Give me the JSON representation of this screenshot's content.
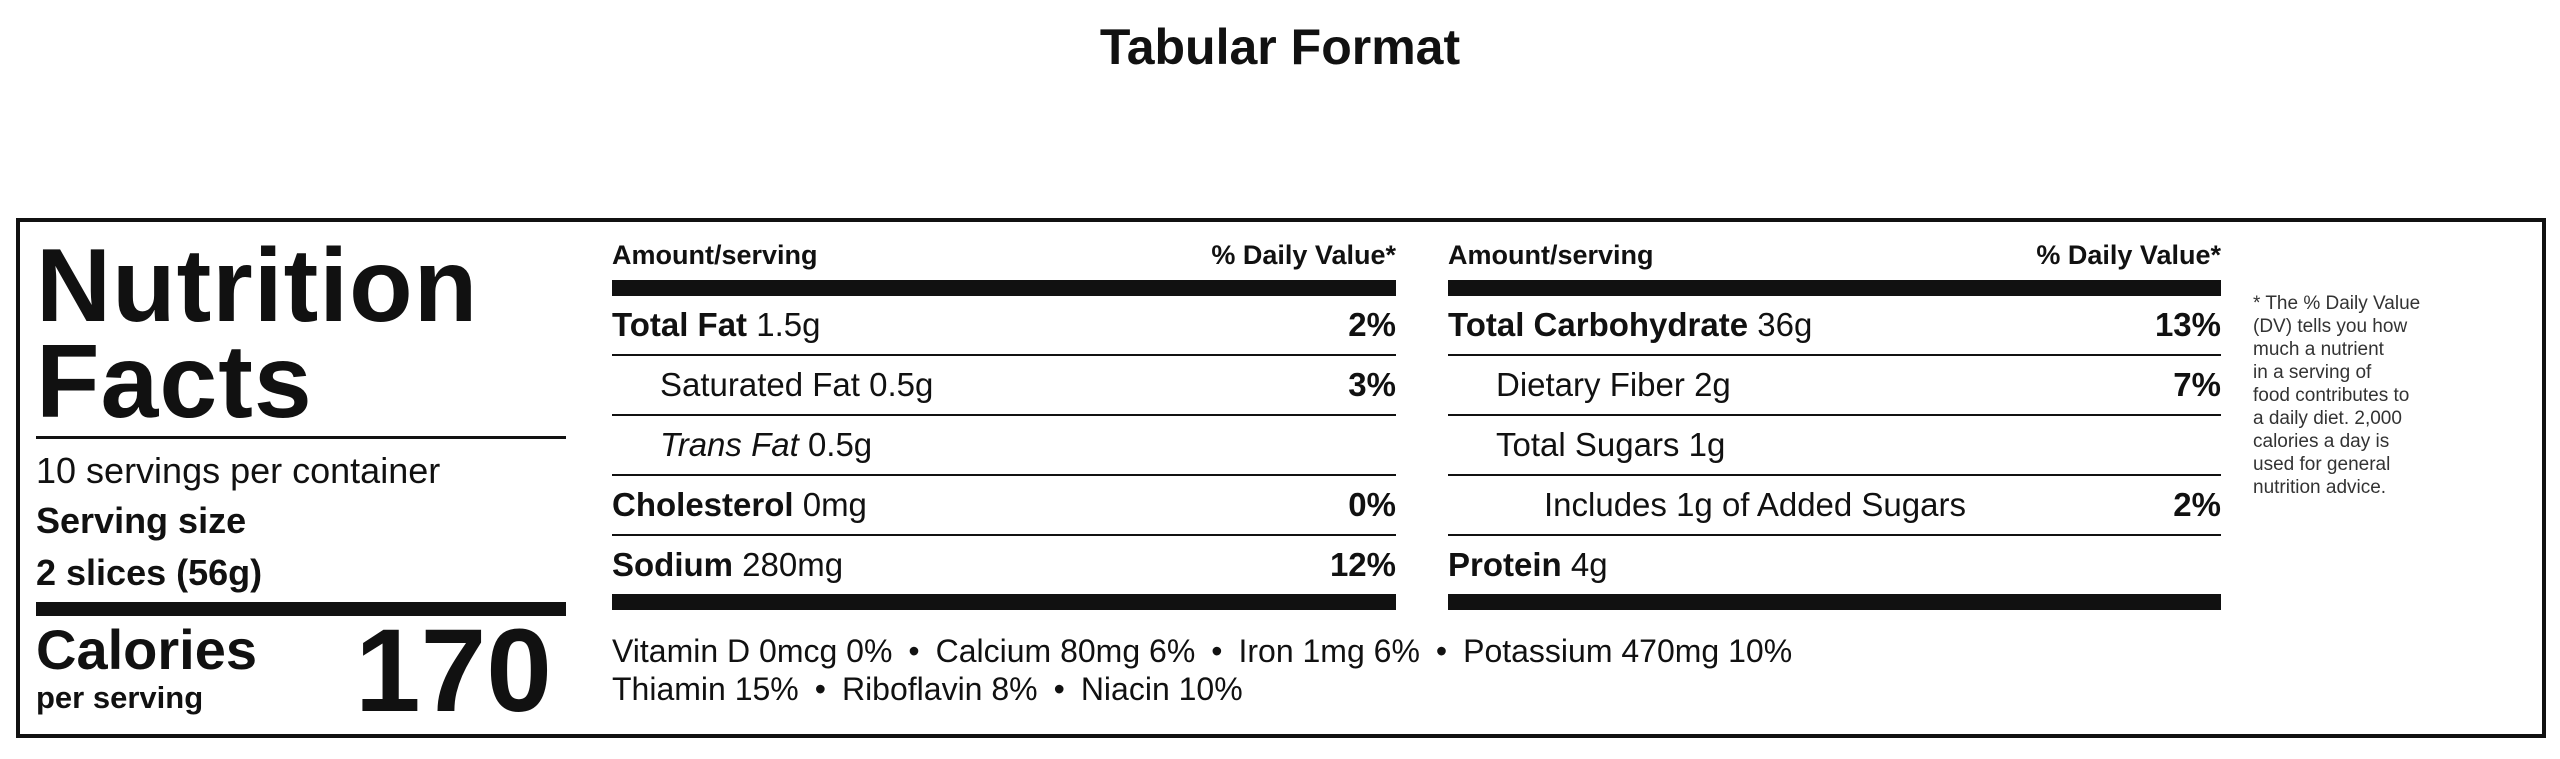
{
  "title": "Tabular Format",
  "label": {
    "heading": [
      "Nutrition",
      "Facts"
    ],
    "servings": "10 servings per container",
    "serving_size_label": "Serving size",
    "serving_size": "2 slices (56g)",
    "calories_label": "Calories",
    "calories_sub": "per serving",
    "calories": "170",
    "columns": [
      {
        "header": [
          "Amount/serving",
          "% Daily Value*"
        ],
        "rows": [
          {
            "name": "Total Fat",
            "amount": "1.5g",
            "dv": "2%",
            "level": 0,
            "bold": true
          },
          {
            "name": "Saturated Fat",
            "amount": "0.5g",
            "dv": "3%",
            "level": 1,
            "bold": false
          },
          {
            "name": "Trans Fat",
            "amount": "0.5g",
            "level": 1,
            "bold": false,
            "italic": true
          },
          {
            "name": "Cholesterol",
            "amount": "0mg",
            "dv": "0%",
            "level": 0,
            "bold": true
          },
          {
            "name": "Sodium",
            "amount": "280mg",
            "dv": "12%",
            "level": 0,
            "bold": true
          }
        ]
      },
      {
        "header": [
          "Amount/serving",
          "% Daily Value*"
        ],
        "rows": [
          {
            "name": "Total Carbohydrate",
            "amount": "36g",
            "dv": "13%",
            "level": 0,
            "bold": true
          },
          {
            "name": "Dietary Fiber",
            "amount": "2g",
            "dv": "7%",
            "level": 1,
            "bold": false
          },
          {
            "name": "Total Sugars",
            "amount": "1g",
            "level": 1,
            "bold": false
          },
          {
            "name": "Includes 1g of Added Sugars",
            "dv": "2%",
            "level": 2,
            "bold": false
          },
          {
            "name": "Protein",
            "amount": "4g",
            "level": 0,
            "bold": true
          }
        ]
      }
    ],
    "vitamins": [
      [
        "Vitamin D 0mcg 0%",
        "Calcium 80mg 6%",
        "Iron 1mg 6%",
        "Potassium 470mg 10%"
      ],
      [
        "Thiamin 15%",
        "Riboflavin 8%",
        "Niacin 10%"
      ]
    ],
    "footnote": [
      "* The % Daily Value",
      "(DV) tells you how",
      "much a nutrient",
      "in a serving of",
      "food contributes to",
      "a daily diet. 2,000",
      "calories a day is",
      "used for general",
      "nutrition advice."
    ]
  }
}
